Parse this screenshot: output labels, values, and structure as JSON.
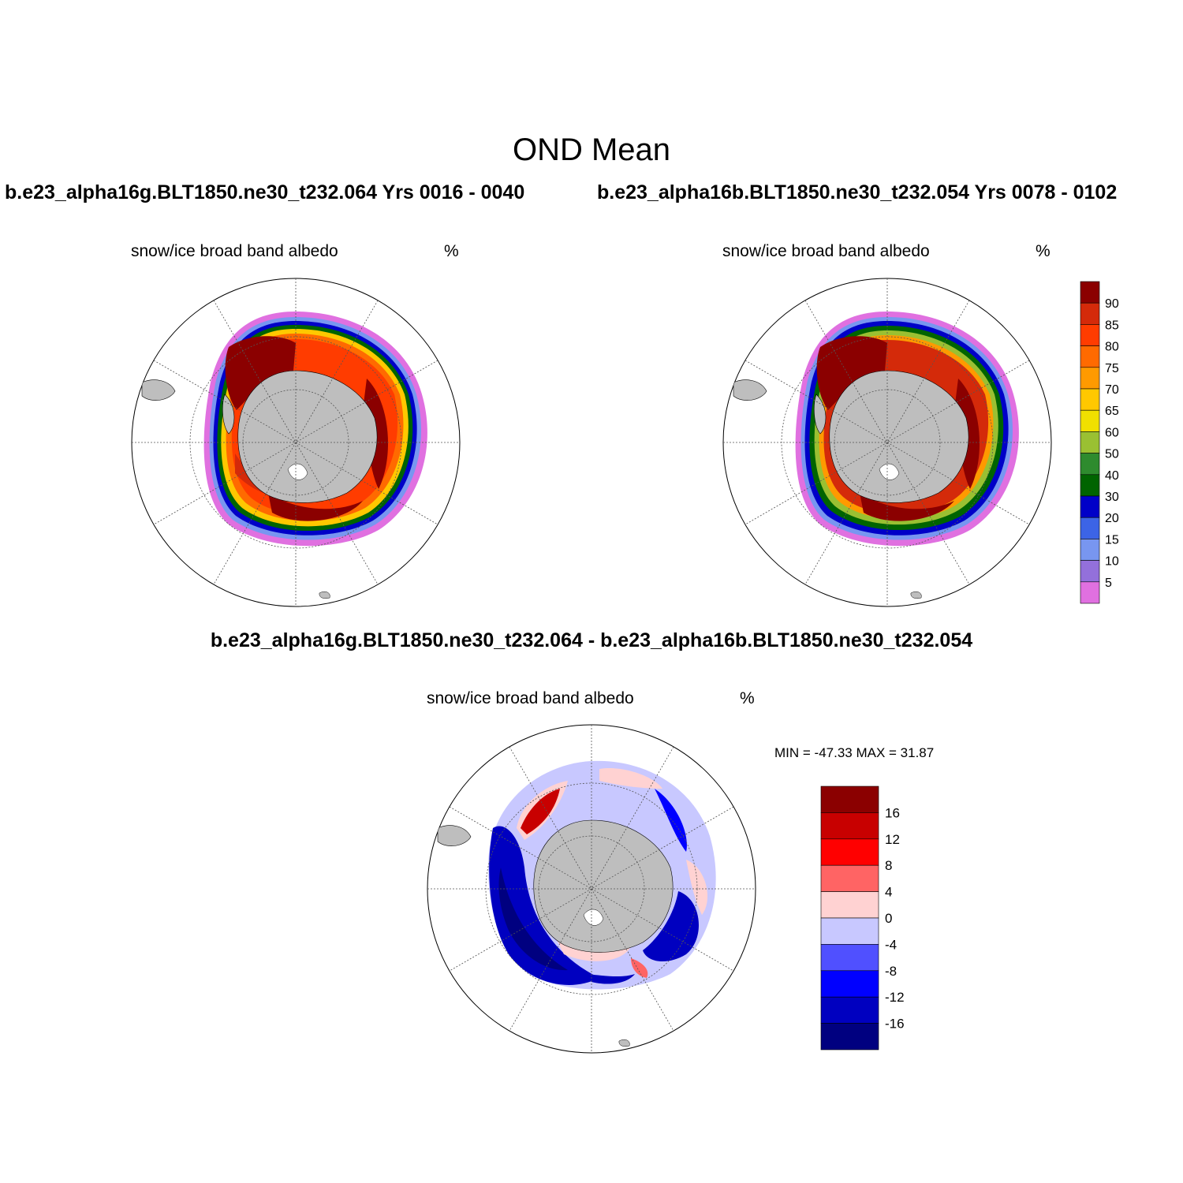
{
  "figure": {
    "title": "OND Mean",
    "variable": "snow/ice broad band albedo",
    "units": "%"
  },
  "panels": [
    {
      "label": "b.e23_alpha16g.BLT1850.ne30_t232.064  Yrs 0016 - 0040",
      "variable": "snow/ice broad band albedo",
      "units": "%"
    },
    {
      "label": "b.e23_alpha16b.BLT1850.ne30_t232.054  Yrs 0078 - 0102",
      "variable": "snow/ice broad band albedo",
      "units": "%"
    },
    {
      "label": "b.e23_alpha16g.BLT1850.ne30_t232.064 - b.e23_alpha16b.BLT1850.ne30_t232.054",
      "variable": "snow/ice broad band albedo",
      "units": "%",
      "minmax": "MIN = -47.33 MAX =  31.87"
    }
  ],
  "colorbar_abs": {
    "labels": [
      "90",
      "85",
      "80",
      "75",
      "70",
      "65",
      "60",
      "50",
      "40",
      "30",
      "20",
      "15",
      "10",
      "5"
    ],
    "colors": [
      "#8b0000",
      "#d42a0a",
      "#ff3c00",
      "#ff6a00",
      "#ff9a00",
      "#ffc800",
      "#f0e000",
      "#9ac032",
      "#2e8b2e",
      "#006400",
      "#0000c8",
      "#3c64e6",
      "#7896f0",
      "#9370db",
      "#e070e0"
    ]
  },
  "colorbar_diff": {
    "labels": [
      "16",
      "12",
      "8",
      "4",
      "0",
      "-4",
      "-8",
      "-12",
      "-16"
    ],
    "colors": [
      "#8b0000",
      "#c80000",
      "#ff0000",
      "#ff6464",
      "#ffd2d2",
      "#c8c8ff",
      "#5050ff",
      "#0000ff",
      "#0000c0",
      "#000080"
    ]
  },
  "colors": {
    "land": "#bebebe",
    "ice_core": "#8b0000",
    "grid": "#555555"
  }
}
